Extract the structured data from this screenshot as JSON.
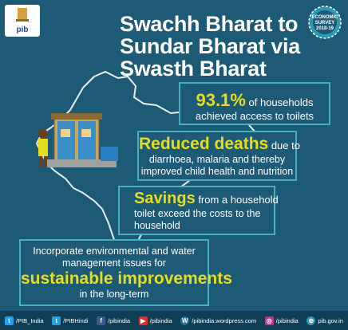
{
  "logo": {
    "text": "pib"
  },
  "title": {
    "line1": "Swachh Bharat to",
    "line2": "Sundar Bharat via",
    "line3": "Swasth Bharat"
  },
  "badge": {
    "line1": "ECONOMIC",
    "line2": "SURVEY",
    "line3": "2018-19"
  },
  "facts": {
    "toilets": {
      "highlight": "93.1%",
      "rest1": " of households",
      "line2": "achieved access to toilets"
    },
    "deaths": {
      "highlight": "Reduced deaths",
      "rest1": " due to",
      "line2": "diarrhoea, malaria and thereby",
      "line3": "improved child health and nutrition"
    },
    "savings": {
      "highlight": "Savings",
      "rest1": " from a household",
      "line2": "toilet exceed the costs to the",
      "line3": "household"
    },
    "sustain": {
      "line1": "Incorporate environmental and water",
      "line2": "management issues for",
      "highlight": "sustainable improvements",
      "line4": "in the long-term"
    }
  },
  "footer": {
    "items": [
      {
        "icon": "twitter-icon",
        "label": "/PIB_India"
      },
      {
        "icon": "twitter-icon",
        "label": "/PIBHindi"
      },
      {
        "icon": "facebook-icon",
        "label": "/pibindia"
      },
      {
        "icon": "youtube-icon",
        "label": "/pibindia"
      },
      {
        "icon": "wordpress-icon",
        "label": "/pibindia.wordpress.com"
      },
      {
        "icon": "instagram-icon",
        "label": "/pibindia"
      },
      {
        "icon": "website-icon",
        "label": "pib.gov.in"
      }
    ]
  },
  "colors": {
    "background": "#1d5a76",
    "accent": "#e6dd1d",
    "border": "#47b0c0",
    "footer": "#0f3f56"
  }
}
